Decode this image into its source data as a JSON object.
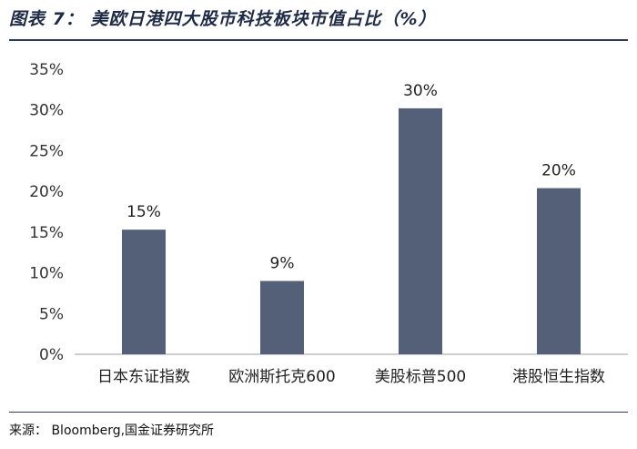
{
  "title": "图表 7： 美欧日港四大股市科技板块市值占比（%）",
  "source": "来源： Bloomberg,国金证券研究所",
  "colors": {
    "bar": "#536078",
    "axis": "#bfbfbf",
    "rule": "#2c3a5c"
  },
  "chart_data": {
    "type": "bar",
    "categories": [
      "日本东证指数",
      "欧洲斯托克600",
      "美股标普500",
      "港股恒生指数"
    ],
    "values": [
      15.3,
      9.0,
      30.2,
      20.4
    ],
    "data_labels": [
      "15%",
      "9%",
      "30%",
      "20%"
    ],
    "ylim": [
      0,
      35
    ],
    "yticks": [
      0,
      5,
      10,
      15,
      20,
      25,
      30,
      35
    ],
    "ytick_labels": [
      "0%",
      "5%",
      "10%",
      "15%",
      "20%",
      "25%",
      "30%",
      "35%"
    ],
    "grid": false,
    "legend": "none"
  }
}
